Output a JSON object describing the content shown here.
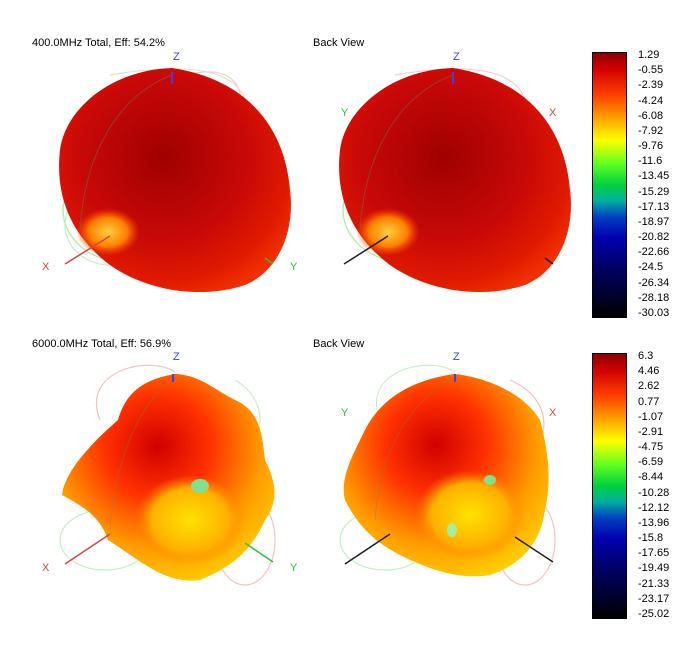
{
  "chart_data": [
    {
      "type": "heatmap",
      "title": "400.0MHz Total, Eff: 54.2%",
      "back_view_label": "Back View",
      "frequency_mhz": 400.0,
      "efficiency_pct": 54.2,
      "axes": [
        "Z",
        "X",
        "Y"
      ],
      "colorbar": {
        "ticks": [
          "1.29",
          "-0.55",
          "-2.39",
          "-4.24",
          "-6.08",
          "-7.92",
          "-9.76",
          "-11.6",
          "-13.45",
          "-15.29",
          "-17.13",
          "-18.97",
          "-20.82",
          "-22.66",
          "-24.5",
          "-26.34",
          "-28.18",
          "-30.03"
        ],
        "min": -30.03,
        "max": 1.29
      }
    },
    {
      "type": "heatmap",
      "title": "6000.0MHz Total, Eff: 56.9%",
      "back_view_label": "Back View",
      "frequency_mhz": 6000.0,
      "efficiency_pct": 56.9,
      "axes": [
        "Z",
        "X",
        "Y"
      ],
      "colorbar": {
        "ticks": [
          "6.3",
          "4.46",
          "2.62",
          "0.77",
          "-1.07",
          "-2.91",
          "-4.75",
          "-6.59",
          "-8.44",
          "-10.28",
          "-12.12",
          "-13.96",
          "-15.8",
          "-17.65",
          "-19.49",
          "-21.33",
          "-23.17",
          "-25.02"
        ],
        "min": -25.02,
        "max": 6.3
      }
    }
  ],
  "colors": {
    "axis_x": "#e04040",
    "axis_y": "#30c030",
    "axis_z": "#4040e0",
    "scale_stops": [
      "#8b0000",
      "#e00000",
      "#ff6000",
      "#ffc000",
      "#ffff00",
      "#c0ff00",
      "#00e000",
      "#00c0a0",
      "#0000c0",
      "#000060",
      "#000000"
    ]
  }
}
